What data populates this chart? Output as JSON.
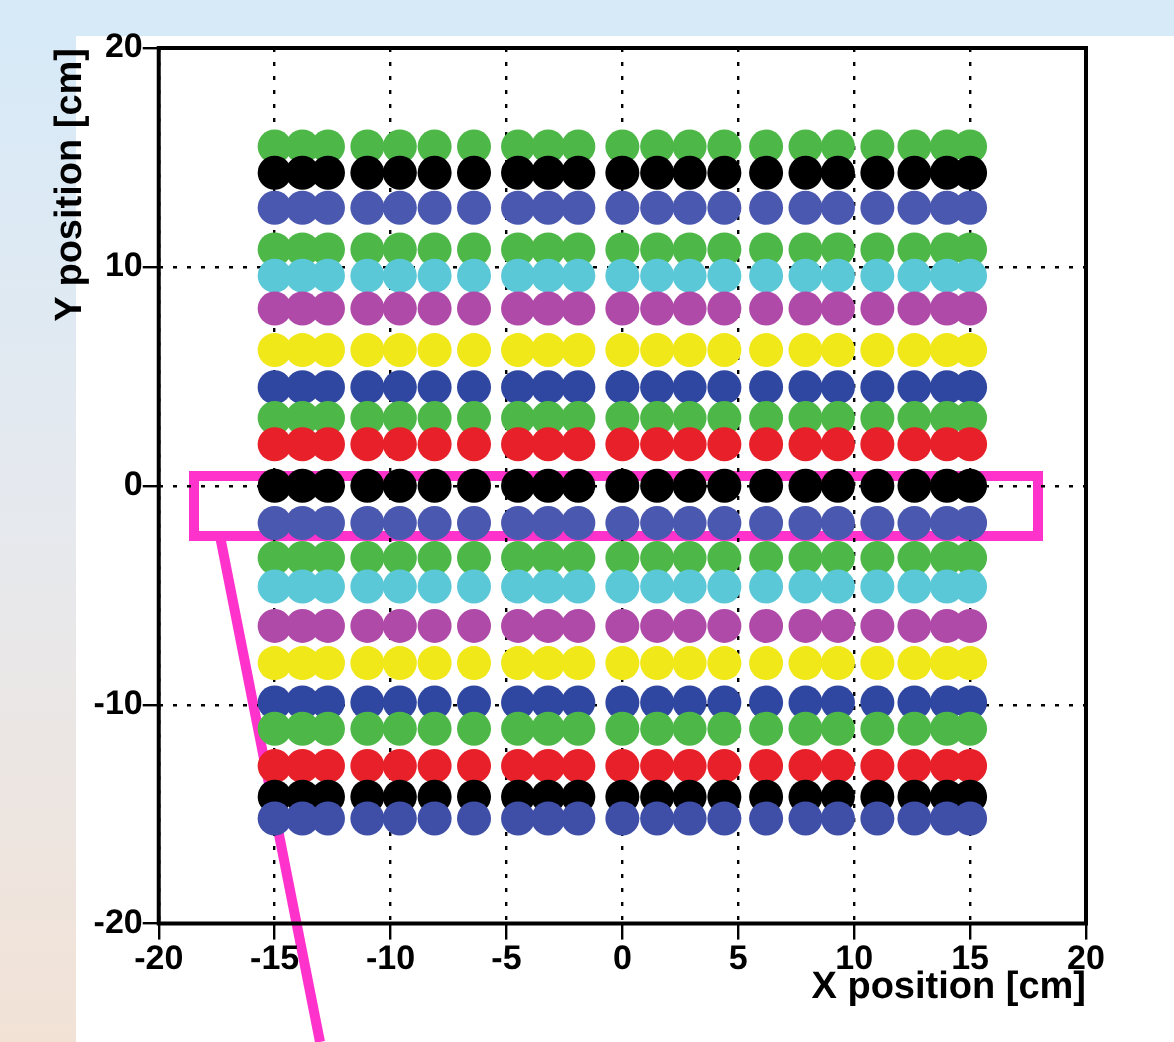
{
  "chart_data": {
    "type": "scatter",
    "xlabel": "X position [cm]",
    "ylabel": "Y position [cm]",
    "xlim": [
      -20,
      20
    ],
    "ylim": [
      -20,
      20
    ],
    "xticks": [
      -20,
      -15,
      -10,
      -5,
      0,
      5,
      10,
      15,
      20
    ],
    "yticks": [
      -20,
      -10,
      0,
      10,
      20
    ],
    "grid": true,
    "marker": "circle",
    "x": [
      -15,
      -13.8,
      -12.7,
      -11,
      -9.6,
      -8.1,
      -6.4,
      -4.5,
      -3.2,
      -1.9,
      0,
      1.5,
      2.9,
      4.4,
      6.2,
      7.9,
      9.3,
      11,
      12.6,
      14,
      15
    ],
    "series": [
      {
        "color": "#3f4fa8",
        "values": [
          -15.2,
          -15.2,
          -15.2,
          -15.2,
          -15.2,
          -15.2,
          -15.2,
          -15.2,
          -15.2,
          -15.2,
          -15.2,
          -15.2,
          -15.2,
          -15.2,
          -15.2,
          -15.2,
          -15.2,
          -15.2,
          -15.2,
          -15.2,
          -15.2
        ]
      },
      {
        "color": "#000000",
        "values": [
          -14.2,
          -14.2,
          -14.2,
          -14.2,
          -14.2,
          -14.2,
          -14.2,
          -14.2,
          -14.2,
          -14.2,
          -14.2,
          -14.2,
          -14.2,
          -14.2,
          -14.2,
          -14.2,
          -14.2,
          -14.2,
          -14.2,
          -14.2,
          -14.2
        ]
      },
      {
        "color": "#e8202a",
        "values": [
          -12.8,
          -12.8,
          -12.8,
          -12.8,
          -12.8,
          -12.8,
          -12.8,
          -12.8,
          -12.8,
          -12.8,
          -12.8,
          -12.8,
          -12.8,
          -12.8,
          -12.8,
          -12.8,
          -12.8,
          -12.8,
          -12.8,
          -12.8,
          -12.8
        ]
      },
      {
        "color": "#4db848",
        "values": [
          -11.1,
          -11.1,
          -11.1,
          -11.1,
          -11.1,
          -11.1,
          -11.1,
          -11.1,
          -11.1,
          -11.1,
          -11.1,
          -11.1,
          -11.1,
          -11.1,
          -11.1,
          -11.1,
          -11.1,
          -11.1,
          -11.1,
          -11.1,
          -11.1
        ]
      },
      {
        "color": "#2f47a0",
        "values": [
          -9.9,
          -9.9,
          -9.9,
          -9.9,
          -9.9,
          -9.9,
          -9.9,
          -9.9,
          -9.9,
          -9.9,
          -9.9,
          -9.9,
          -9.9,
          -9.9,
          -9.9,
          -9.9,
          -9.9,
          -9.9,
          -9.9,
          -9.9,
          -9.9
        ]
      },
      {
        "color": "#f0e818",
        "values": [
          -8.1,
          -8.1,
          -8.1,
          -8.1,
          -8.1,
          -8.1,
          -8.1,
          -8.1,
          -8.1,
          -8.1,
          -8.1,
          -8.1,
          -8.1,
          -8.1,
          -8.1,
          -8.1,
          -8.1,
          -8.1,
          -8.1,
          -8.1,
          -8.1
        ]
      },
      {
        "color": "#b04aa8",
        "values": [
          -6.4,
          -6.4,
          -6.4,
          -6.4,
          -6.4,
          -6.4,
          -6.4,
          -6.4,
          -6.4,
          -6.4,
          -6.4,
          -6.4,
          -6.4,
          -6.4,
          -6.4,
          -6.4,
          -6.4,
          -6.4,
          -6.4,
          -6.4,
          -6.4
        ]
      },
      {
        "color": "#5bc8d8",
        "values": [
          -4.6,
          -4.6,
          -4.6,
          -4.6,
          -4.6,
          -4.6,
          -4.6,
          -4.6,
          -4.6,
          -4.6,
          -4.6,
          -4.6,
          -4.6,
          -4.6,
          -4.6,
          -4.6,
          -4.6,
          -4.6,
          -4.6,
          -4.6,
          -4.6
        ]
      },
      {
        "color": "#4db848",
        "values": [
          -3.3,
          -3.3,
          -3.3,
          -3.3,
          -3.3,
          -3.3,
          -3.3,
          -3.3,
          -3.3,
          -3.3,
          -3.3,
          -3.3,
          -3.3,
          -3.3,
          -3.3,
          -3.3,
          -3.3,
          -3.3,
          -3.3,
          -3.3,
          -3.3
        ]
      },
      {
        "color": "#4a58b0",
        "values": [
          -1.7,
          -1.7,
          -1.7,
          -1.7,
          -1.7,
          -1.7,
          -1.7,
          -1.7,
          -1.7,
          -1.7,
          -1.7,
          -1.7,
          -1.7,
          -1.7,
          -1.7,
          -1.7,
          -1.7,
          -1.7,
          -1.7,
          -1.7,
          -1.7
        ]
      },
      {
        "color": "#000000",
        "values": [
          0,
          0,
          0,
          0,
          0,
          0,
          0,
          0,
          0,
          0,
          0,
          0,
          0,
          0,
          0,
          0,
          0,
          0,
          0,
          0,
          0
        ]
      },
      {
        "color": "#e8202a",
        "values": [
          1.9,
          1.9,
          1.9,
          1.9,
          1.9,
          1.9,
          1.9,
          1.9,
          1.9,
          1.9,
          1.9,
          1.9,
          1.9,
          1.9,
          1.9,
          1.9,
          1.9,
          1.9,
          1.9,
          1.9,
          1.9
        ]
      },
      {
        "color": "#4db848",
        "values": [
          3.1,
          3.1,
          3.1,
          3.1,
          3.1,
          3.1,
          3.1,
          3.1,
          3.1,
          3.1,
          3.1,
          3.1,
          3.1,
          3.1,
          3.1,
          3.1,
          3.1,
          3.1,
          3.1,
          3.1,
          3.1
        ]
      },
      {
        "color": "#2f47a0",
        "values": [
          4.5,
          4.5,
          4.5,
          4.5,
          4.5,
          4.5,
          4.5,
          4.5,
          4.5,
          4.5,
          4.5,
          4.5,
          4.5,
          4.5,
          4.5,
          4.5,
          4.5,
          4.5,
          4.5,
          4.5,
          4.5
        ]
      },
      {
        "color": "#f0e818",
        "values": [
          6.2,
          6.2,
          6.2,
          6.2,
          6.2,
          6.2,
          6.2,
          6.2,
          6.2,
          6.2,
          6.2,
          6.2,
          6.2,
          6.2,
          6.2,
          6.2,
          6.2,
          6.2,
          6.2,
          6.2,
          6.2
        ]
      },
      {
        "color": "#b04aa8",
        "values": [
          8.1,
          8.1,
          8.1,
          8.1,
          8.1,
          8.1,
          8.1,
          8.1,
          8.1,
          8.1,
          8.1,
          8.1,
          8.1,
          8.1,
          8.1,
          8.1,
          8.1,
          8.1,
          8.1,
          8.1,
          8.1
        ]
      },
      {
        "color": "#5bc8d8",
        "values": [
          9.6,
          9.6,
          9.6,
          9.6,
          9.6,
          9.6,
          9.6,
          9.6,
          9.6,
          9.6,
          9.6,
          9.6,
          9.6,
          9.6,
          9.6,
          9.6,
          9.6,
          9.6,
          9.6,
          9.6,
          9.6
        ]
      },
      {
        "color": "#4db848",
        "values": [
          10.8,
          10.8,
          10.8,
          10.8,
          10.8,
          10.8,
          10.8,
          10.8,
          10.8,
          10.8,
          10.8,
          10.8,
          10.8,
          10.8,
          10.8,
          10.8,
          10.8,
          10.8,
          10.8,
          10.8,
          10.8
        ]
      },
      {
        "color": "#4a58b0",
        "values": [
          12.7,
          12.7,
          12.7,
          12.7,
          12.7,
          12.7,
          12.7,
          12.7,
          12.7,
          12.7,
          12.7,
          12.7,
          12.7,
          12.7,
          12.7,
          12.7,
          12.7,
          12.7,
          12.7,
          12.7,
          12.7
        ]
      },
      {
        "color": "#000000",
        "values": [
          14.3,
          14.3,
          14.3,
          14.3,
          14.3,
          14.3,
          14.3,
          14.3,
          14.3,
          14.3,
          14.3,
          14.3,
          14.3,
          14.3,
          14.3,
          14.3,
          14.3,
          14.3,
          14.3,
          14.3,
          14.3
        ]
      },
      {
        "color": "#4db848",
        "values": [
          15.5,
          15.5,
          15.5,
          15.5,
          15.5,
          15.5,
          15.5,
          15.5,
          15.5,
          15.5,
          15.5,
          15.5,
          15.5,
          15.5,
          15.5,
          15.5,
          15.5,
          15.5,
          15.5,
          15.5,
          15.5
        ]
      }
    ]
  }
}
